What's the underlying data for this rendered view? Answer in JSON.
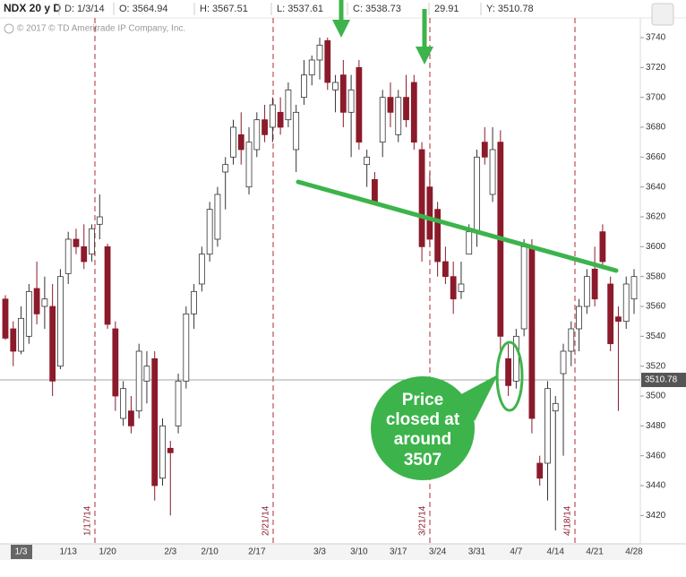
{
  "chart_data": {
    "type": "candlestick",
    "title": "NDX 20 y D",
    "info": [
      "D: 1/3/14",
      "O: 3564.94",
      "H: 3567.51",
      "L: 3537.61",
      "C: 3538.73",
      "29.91",
      "Y: 3510.78"
    ],
    "copyright": "© 2017 © TD Ameritrade IP Company, Inc.",
    "categories": [
      null,
      null,
      "1/3",
      null,
      null,
      null,
      null,
      null,
      "1/13",
      null,
      null,
      null,
      null,
      "1/20",
      null,
      null,
      null,
      null,
      null,
      null,
      null,
      "2/3",
      null,
      null,
      null,
      null,
      "2/10",
      null,
      null,
      null,
      null,
      null,
      "2/17",
      null,
      null,
      null,
      null,
      null,
      null,
      null,
      "3/3",
      null,
      null,
      null,
      null,
      "3/10",
      null,
      null,
      null,
      null,
      "3/17",
      null,
      null,
      null,
      null,
      "3/24",
      null,
      null,
      null,
      null,
      "3/31",
      null,
      null,
      null,
      null,
      "4/7",
      null,
      null,
      null,
      null,
      "4/14",
      null,
      null,
      null,
      null,
      "4/21",
      null,
      null,
      null,
      null,
      "4/28"
    ],
    "open": [
      3564.94,
      3545,
      3530,
      3540,
      3572,
      3560,
      3560,
      3520,
      3582,
      3605,
      3600,
      3595,
      3615,
      3600,
      3545,
      3485,
      3490,
      3490,
      3510,
      3525,
      3445,
      3465,
      3480,
      3510,
      3555,
      3575,
      3595,
      3605,
      3650,
      3660,
      3675,
      3640,
      3665,
      3685,
      3680,
      3690,
      3685,
      3665,
      3700,
      3715,
      3725,
      3738,
      3705,
      3715,
      3690,
      3720,
      3655,
      3645,
      3670,
      3700,
      3675,
      3700,
      3710,
      3665,
      3640,
      3625,
      3590,
      3580,
      3570,
      3595,
      3610,
      3670,
      3635,
      3670,
      3525,
      3510,
      3545,
      3600,
      3455,
      3455,
      3490,
      3515,
      3530,
      3545,
      3560,
      3585,
      3610,
      3575,
      3553,
      3550,
      3565
    ],
    "high": [
      3567.51,
      3550,
      3560,
      3575,
      3590,
      3580,
      3575,
      3585,
      3610,
      3612,
      3615,
      3615,
      3635,
      3602,
      3550,
      3510,
      3500,
      3535,
      3530,
      3530,
      3485,
      3470,
      3515,
      3560,
      3575,
      3600,
      3630,
      3640,
      3660,
      3685,
      3690,
      3680,
      3690,
      3695,
      3700,
      3700,
      3710,
      3695,
      3725,
      3728,
      3740,
      3740,
      3715,
      3725,
      3715,
      3725,
      3665,
      3650,
      3705,
      3710,
      3705,
      3715,
      3715,
      3670,
      3650,
      3630,
      3600,
      3590,
      3590,
      3615,
      3665,
      3680,
      3680,
      3678,
      3535,
      3545,
      3605,
      3605,
      3460,
      3510,
      3500,
      3535,
      3550,
      3565,
      3585,
      3600,
      3615,
      3580,
      3560,
      3580,
      3585
    ],
    "low": [
      3537.61,
      3520,
      3528,
      3535,
      3548,
      3545,
      3500,
      3518,
      3575,
      3595,
      3585,
      3590,
      3605,
      3545,
      3490,
      3480,
      3475,
      3485,
      3495,
      3430,
      3440,
      3420,
      3475,
      3505,
      3545,
      3570,
      3590,
      3600,
      3625,
      3655,
      3655,
      3635,
      3660,
      3670,
      3670,
      3675,
      3680,
      3650,
      3695,
      3708,
      3712,
      3705,
      3690,
      3680,
      3660,
      3665,
      3640,
      3630,
      3660,
      3680,
      3670,
      3680,
      3665,
      3590,
      3600,
      3580,
      3575,
      3555,
      3565,
      3595,
      3600,
      3655,
      3630,
      3530,
      3500,
      3505,
      3540,
      3475,
      3440,
      3430,
      3410,
      3460,
      3520,
      3530,
      3555,
      3560,
      3585,
      3530,
      3490,
      3545,
      3555
    ],
    "close": [
      3538.73,
      3530,
      3552,
      3570,
      3555,
      3565,
      3510,
      3580,
      3605,
      3600,
      3590,
      3612,
      3620,
      3548,
      3500,
      3505,
      3480,
      3530,
      3520,
      3440,
      3480,
      3462,
      3510,
      3555,
      3570,
      3595,
      3625,
      3635,
      3655,
      3680,
      3665,
      3670,
      3685,
      3675,
      3695,
      3680,
      3705,
      3690,
      3715,
      3725,
      3735,
      3710,
      3710,
      3690,
      3705,
      3670,
      3660,
      3630,
      3700,
      3690,
      3700,
      3685,
      3670,
      3600,
      3605,
      3590,
      3580,
      3565,
      3575,
      3610,
      3660,
      3660,
      3665,
      3540,
      3507,
      3540,
      3600,
      3485,
      3445,
      3505,
      3495,
      3530,
      3545,
      3560,
      3580,
      3565,
      3590,
      3535,
      3550,
      3575,
      3580
    ],
    "up_color": "#ffffff",
    "down_color": "#8b1a2a",
    "ylim": [
      3401,
      3752
    ],
    "yticks": [
      3420,
      3440,
      3460,
      3480,
      3500,
      3520,
      3540,
      3560,
      3580,
      3600,
      3620,
      3640,
      3660,
      3680,
      3700,
      3720,
      3740
    ],
    "grid": false,
    "last_price": 3510.78,
    "events": [
      "1/17/14",
      "2/21/14",
      "3/21/14",
      "4/18/14"
    ],
    "annotation": [
      "Price",
      "closed at",
      "around",
      "3507"
    ]
  }
}
